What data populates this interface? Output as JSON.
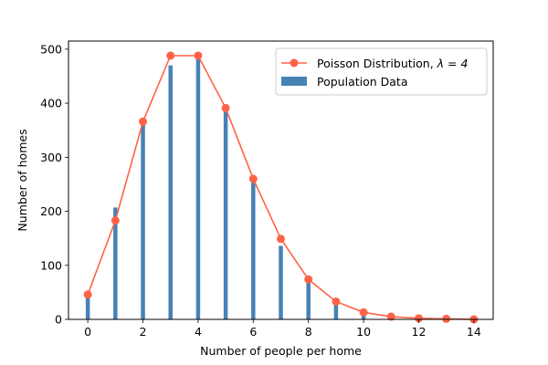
{
  "chart_data": {
    "type": "bar",
    "xlabel": "Number of people per home",
    "ylabel": "Number of homes",
    "xlim": [
      -0.7,
      14.7
    ],
    "ylim": [
      0,
      515
    ],
    "xticks": [
      "0",
      "2",
      "4",
      "6",
      "8",
      "10",
      "12",
      "14"
    ],
    "yticks": [
      "0",
      "100",
      "200",
      "300",
      "400",
      "500"
    ],
    "legend_position": "top-right",
    "colors": {
      "bar": "#4682b4",
      "line": "#ff6347"
    },
    "series": [
      {
        "name": "Population Data",
        "type": "bar",
        "x": [
          0,
          1,
          2,
          3,
          4,
          5,
          6,
          7,
          8,
          9,
          10
        ],
        "values": [
          40,
          207,
          363,
          470,
          485,
          388,
          255,
          136,
          70,
          30,
          8
        ]
      },
      {
        "name_prefix": "Poisson Distribution, ",
        "name_math": "λ = 4",
        "type": "line",
        "x": [
          0,
          1,
          2,
          3,
          4,
          5,
          6,
          7,
          8,
          9,
          10,
          11,
          12,
          13,
          14
        ],
        "values": [
          46,
          183,
          366,
          488,
          488,
          391,
          260,
          149,
          74,
          33,
          13,
          5,
          2,
          1,
          0
        ]
      }
    ]
  }
}
